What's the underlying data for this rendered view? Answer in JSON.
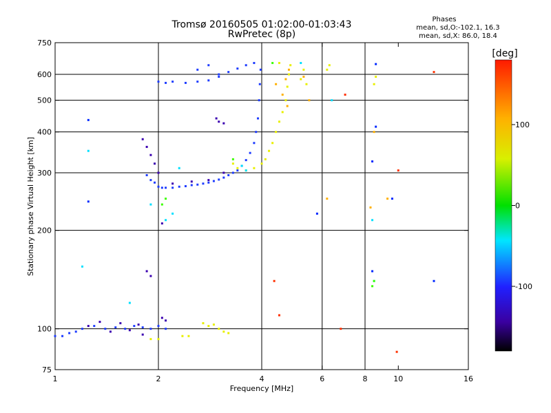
{
  "title": "Tromsø 20160505 01:02:00-01:03:43",
  "subtitle": "RwPretec (8p)",
  "phase_box": {
    "heading": "Phases",
    "line_o": "mean, sd,O:-102.1, 16.3",
    "line_x": "mean, sd,X:  86.0, 18.4"
  },
  "colorbar": {
    "label": "[deg]",
    "ticks": [
      "100",
      "0",
      "-100"
    ],
    "tick_values": [
      100,
      0,
      -100
    ],
    "range": [
      -180,
      180
    ]
  },
  "chart_data": {
    "type": "scatter",
    "xlabel": "Frequency [MHz]",
    "ylabel": "Stationary phase Virtual Height [km]",
    "xscale": "log",
    "yscale": "log",
    "xlim": [
      1,
      16
    ],
    "ylim": [
      75,
      750
    ],
    "x_ticks": [
      1,
      2,
      4,
      6,
      8,
      10,
      16
    ],
    "x_tick_labels": [
      "1",
      "2",
      "4",
      "6",
      "8",
      "10",
      "16"
    ],
    "y_ticks": [
      75,
      100,
      200,
      300,
      400,
      500,
      600,
      750
    ],
    "y_tick_labels": [
      "75",
      "100",
      "200",
      "300",
      "400",
      "500",
      "600",
      "750"
    ],
    "x_gridlines": [
      2,
      4,
      6,
      8
    ],
    "y_gridlines": [
      100,
      200,
      300,
      400,
      500,
      600
    ],
    "grid": true,
    "series": [
      {
        "color": "#1e3cff",
        "phase": -100,
        "points": [
          [
            1.85,
            295
          ],
          [
            1.9,
            285
          ],
          [
            1.95,
            280
          ],
          [
            2.0,
            272
          ],
          [
            2.05,
            270
          ],
          [
            2.1,
            270
          ],
          [
            2.2,
            270
          ],
          [
            2.3,
            272
          ],
          [
            2.4,
            273
          ],
          [
            2.5,
            275
          ],
          [
            2.6,
            276
          ],
          [
            2.7,
            278
          ],
          [
            2.8,
            280
          ],
          [
            2.9,
            283
          ],
          [
            3.0,
            286
          ],
          [
            3.1,
            290
          ],
          [
            3.2,
            295
          ],
          [
            3.3,
            300
          ],
          [
            3.4,
            305
          ],
          [
            3.5,
            315
          ],
          [
            3.6,
            328
          ],
          [
            3.7,
            345
          ],
          [
            3.8,
            370
          ],
          [
            3.85,
            400
          ],
          [
            3.9,
            440
          ],
          [
            3.93,
            500
          ],
          [
            3.95,
            560
          ],
          [
            3.97,
            620
          ],
          [
            2.0,
            570
          ],
          [
            2.1,
            565
          ],
          [
            2.2,
            570
          ],
          [
            2.4,
            565
          ],
          [
            2.6,
            570
          ],
          [
            2.8,
            575
          ],
          [
            3.0,
            590
          ],
          [
            3.2,
            610
          ],
          [
            3.4,
            625
          ],
          [
            3.6,
            640
          ],
          [
            3.8,
            650
          ],
          [
            2.6,
            620
          ],
          [
            2.8,
            640
          ],
          [
            3.0,
            600
          ],
          [
            1.0,
            95
          ],
          [
            1.05,
            95
          ],
          [
            1.1,
            97
          ],
          [
            1.15,
            98
          ],
          [
            1.2,
            100
          ],
          [
            1.3,
            102
          ],
          [
            1.4,
            100
          ],
          [
            1.5,
            101
          ],
          [
            1.6,
            100
          ],
          [
            1.7,
            102
          ],
          [
            1.8,
            101
          ],
          [
            1.9,
            100
          ],
          [
            2.0,
            102
          ],
          [
            2.1,
            100
          ]
        ]
      },
      {
        "color": "#3a00b0",
        "phase": -130,
        "points": [
          [
            1.8,
            380
          ],
          [
            1.85,
            360
          ],
          [
            1.9,
            340
          ],
          [
            1.95,
            320
          ],
          [
            2.0,
            300
          ],
          [
            2.2,
            278
          ],
          [
            2.5,
            282
          ],
          [
            2.8,
            285
          ],
          [
            3.1,
            300
          ],
          [
            3.0,
            430
          ],
          [
            2.95,
            440
          ],
          [
            3.1,
            425
          ],
          [
            1.25,
            102
          ],
          [
            1.35,
            105
          ],
          [
            1.45,
            98
          ],
          [
            1.55,
            104
          ],
          [
            1.65,
            99
          ],
          [
            1.75,
            103
          ],
          [
            1.85,
            150
          ],
          [
            1.9,
            145
          ],
          [
            2.05,
            108
          ],
          [
            2.1,
            106
          ],
          [
            1.8,
            96
          ],
          [
            2.05,
            210
          ]
        ]
      },
      {
        "color": "#e8f000",
        "phase": 110,
        "points": [
          [
            3.3,
            320
          ],
          [
            3.4,
            310
          ],
          [
            3.6,
            305
          ],
          [
            3.8,
            310
          ],
          [
            4.0,
            320
          ],
          [
            4.1,
            330
          ],
          [
            4.2,
            350
          ],
          [
            4.3,
            370
          ],
          [
            4.4,
            400
          ],
          [
            4.5,
            430
          ],
          [
            4.6,
            460
          ],
          [
            4.7,
            500
          ],
          [
            4.75,
            550
          ],
          [
            4.8,
            600
          ],
          [
            4.85,
            640
          ],
          [
            5.2,
            580
          ],
          [
            5.3,
            620
          ],
          [
            5.4,
            560
          ],
          [
            2.7,
            104
          ],
          [
            2.8,
            102
          ],
          [
            2.9,
            103
          ],
          [
            3.0,
            100
          ],
          [
            3.1,
            98
          ],
          [
            3.2,
            97
          ],
          [
            1.9,
            93
          ],
          [
            2.0,
            93
          ],
          [
            2.35,
            95
          ],
          [
            2.45,
            95
          ],
          [
            4.5,
            650
          ],
          [
            6.2,
            620
          ],
          [
            6.3,
            640
          ],
          [
            8.5,
            560
          ],
          [
            8.6,
            590
          ]
        ]
      },
      {
        "color": "#ffb000",
        "phase": 140,
        "points": [
          [
            4.6,
            520
          ],
          [
            4.7,
            580
          ],
          [
            4.8,
            620
          ],
          [
            5.3,
            590
          ],
          [
            5.5,
            500
          ],
          [
            6.2,
            250
          ],
          [
            9.3,
            250
          ],
          [
            8.3,
            235
          ],
          [
            8.5,
            400
          ],
          [
            4.4,
            560
          ],
          [
            4.75,
            480
          ]
        ]
      },
      {
        "color": "#00e0ff",
        "phase": 20,
        "points": [
          [
            1.2,
            155
          ],
          [
            1.25,
            350
          ],
          [
            1.9,
            240
          ],
          [
            2.1,
            215
          ],
          [
            1.65,
            120
          ],
          [
            2.2,
            225
          ],
          [
            2.3,
            310
          ],
          [
            3.5,
            315
          ],
          [
            3.6,
            305
          ],
          [
            6.4,
            500
          ],
          [
            5.2,
            650
          ],
          [
            8.5,
            140
          ],
          [
            8.4,
            215
          ]
        ]
      },
      {
        "color": "#3cff00",
        "phase": 60,
        "points": [
          [
            2.05,
            240
          ],
          [
            2.1,
            250
          ],
          [
            3.3,
            330
          ],
          [
            8.4,
            135
          ],
          [
            8.5,
            140
          ],
          [
            4.3,
            650
          ]
        ]
      },
      {
        "color": "#ff3000",
        "phase": 170,
        "points": [
          [
            4.35,
            140
          ],
          [
            4.5,
            110
          ],
          [
            6.8,
            100
          ],
          [
            7.0,
            520
          ],
          [
            10.0,
            305
          ],
          [
            12.7,
            610
          ],
          [
            9.9,
            85
          ]
        ]
      },
      {
        "color": "#0028ff",
        "phase": -110,
        "points": [
          [
            1.25,
            435
          ],
          [
            1.25,
            245
          ],
          [
            5.8,
            225
          ],
          [
            8.6,
            645
          ],
          [
            8.4,
            325
          ],
          [
            8.6,
            415
          ],
          [
            9.6,
            250
          ],
          [
            12.7,
            140
          ],
          [
            8.4,
            150
          ]
        ]
      }
    ]
  }
}
